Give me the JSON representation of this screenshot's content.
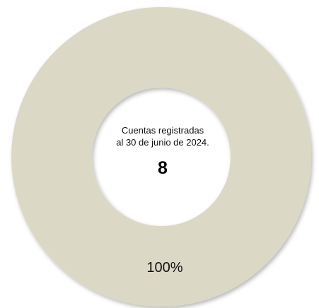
{
  "chart_data": {
    "type": "pie",
    "donut": true,
    "title": "",
    "center_text": {
      "line1": "Cuentas registradas",
      "line2": "al 30 de junio de 2024.",
      "value": "8"
    },
    "slices": [
      {
        "label": "100%",
        "value": 100,
        "color": "#dcd8c6"
      }
    ],
    "legend": "none"
  }
}
